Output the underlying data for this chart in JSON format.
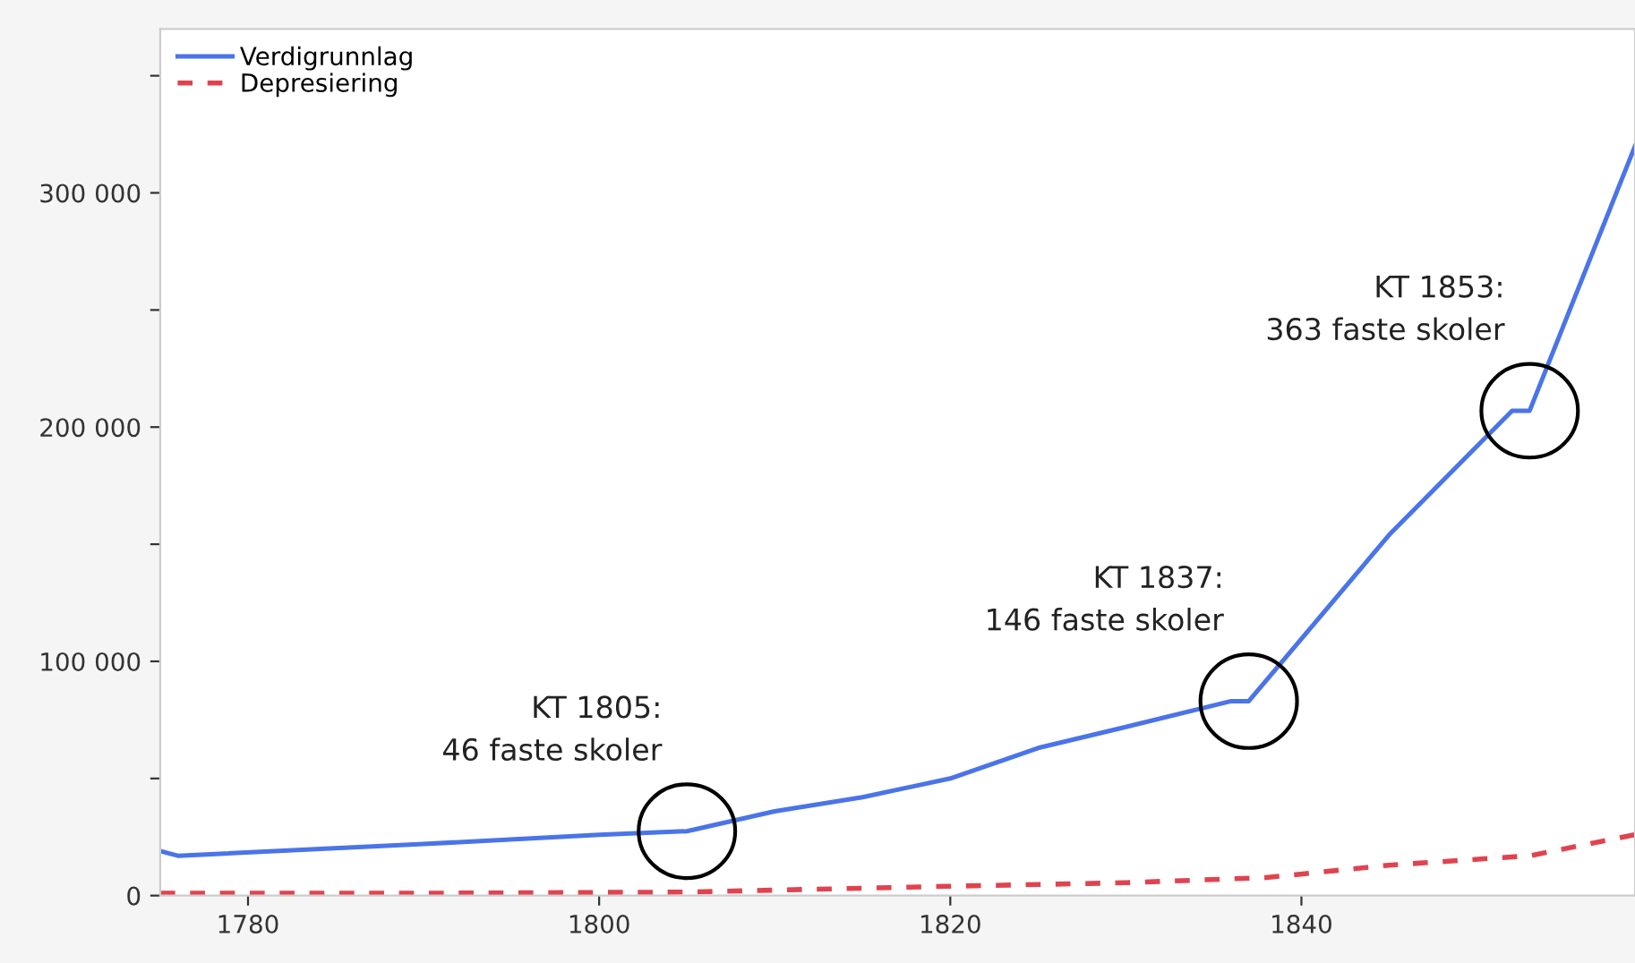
{
  "chart_data": {
    "type": "line",
    "xlim": [
      1775,
      1859
    ],
    "xticks": [
      1780,
      1800,
      1820,
      1840
    ],
    "ylim": [
      0,
      370000
    ],
    "yticks": [
      0,
      {
        "value": 50000,
        "label": null
      },
      {
        "value": 100000,
        "label": "100 000"
      },
      {
        "value": 150000,
        "label": null
      },
      {
        "value": 200000,
        "label": "200 000"
      },
      {
        "value": 250000,
        "label": null
      },
      {
        "value": 300000,
        "label": "300 000"
      },
      {
        "value": 350000,
        "label": null
      }
    ],
    "grid": false,
    "legend": "top left",
    "marker": "none",
    "series": [
      {
        "name": "Verdigrunnlag",
        "color": "#4a74e8",
        "line_style": "solid",
        "x": [
          1775,
          1776,
          1790,
          1800,
          1805,
          1810,
          1815,
          1820,
          1825,
          1830,
          1836,
          1837,
          1845,
          1852,
          1853,
          1859
        ],
        "values": [
          19000,
          17000,
          22000,
          26000,
          27500,
          36000,
          42000,
          50000,
          63000,
          72000,
          83000,
          83000,
          154000,
          207000,
          207000,
          320000
        ]
      },
      {
        "name": "Depresiering",
        "color": "#e0434f",
        "line_style": "dashed",
        "x": [
          1775,
          1790,
          1805,
          1820,
          1830,
          1838,
          1845,
          1853,
          1859
        ],
        "values": [
          1000,
          1000,
          1500,
          4000,
          5500,
          7700,
          13000,
          17000,
          26000
        ]
      }
    ],
    "annotations": [
      {
        "text": "KT 1805:\n46 faste skoler",
        "x": 1805,
        "y": 27500
      },
      {
        "text": "KT 1837:\n146 faste skoler",
        "x": 1837,
        "y": 83000
      },
      {
        "text": "KT 1853:\n363 faste skoler",
        "x": 1853,
        "y": 207000
      }
    ]
  }
}
